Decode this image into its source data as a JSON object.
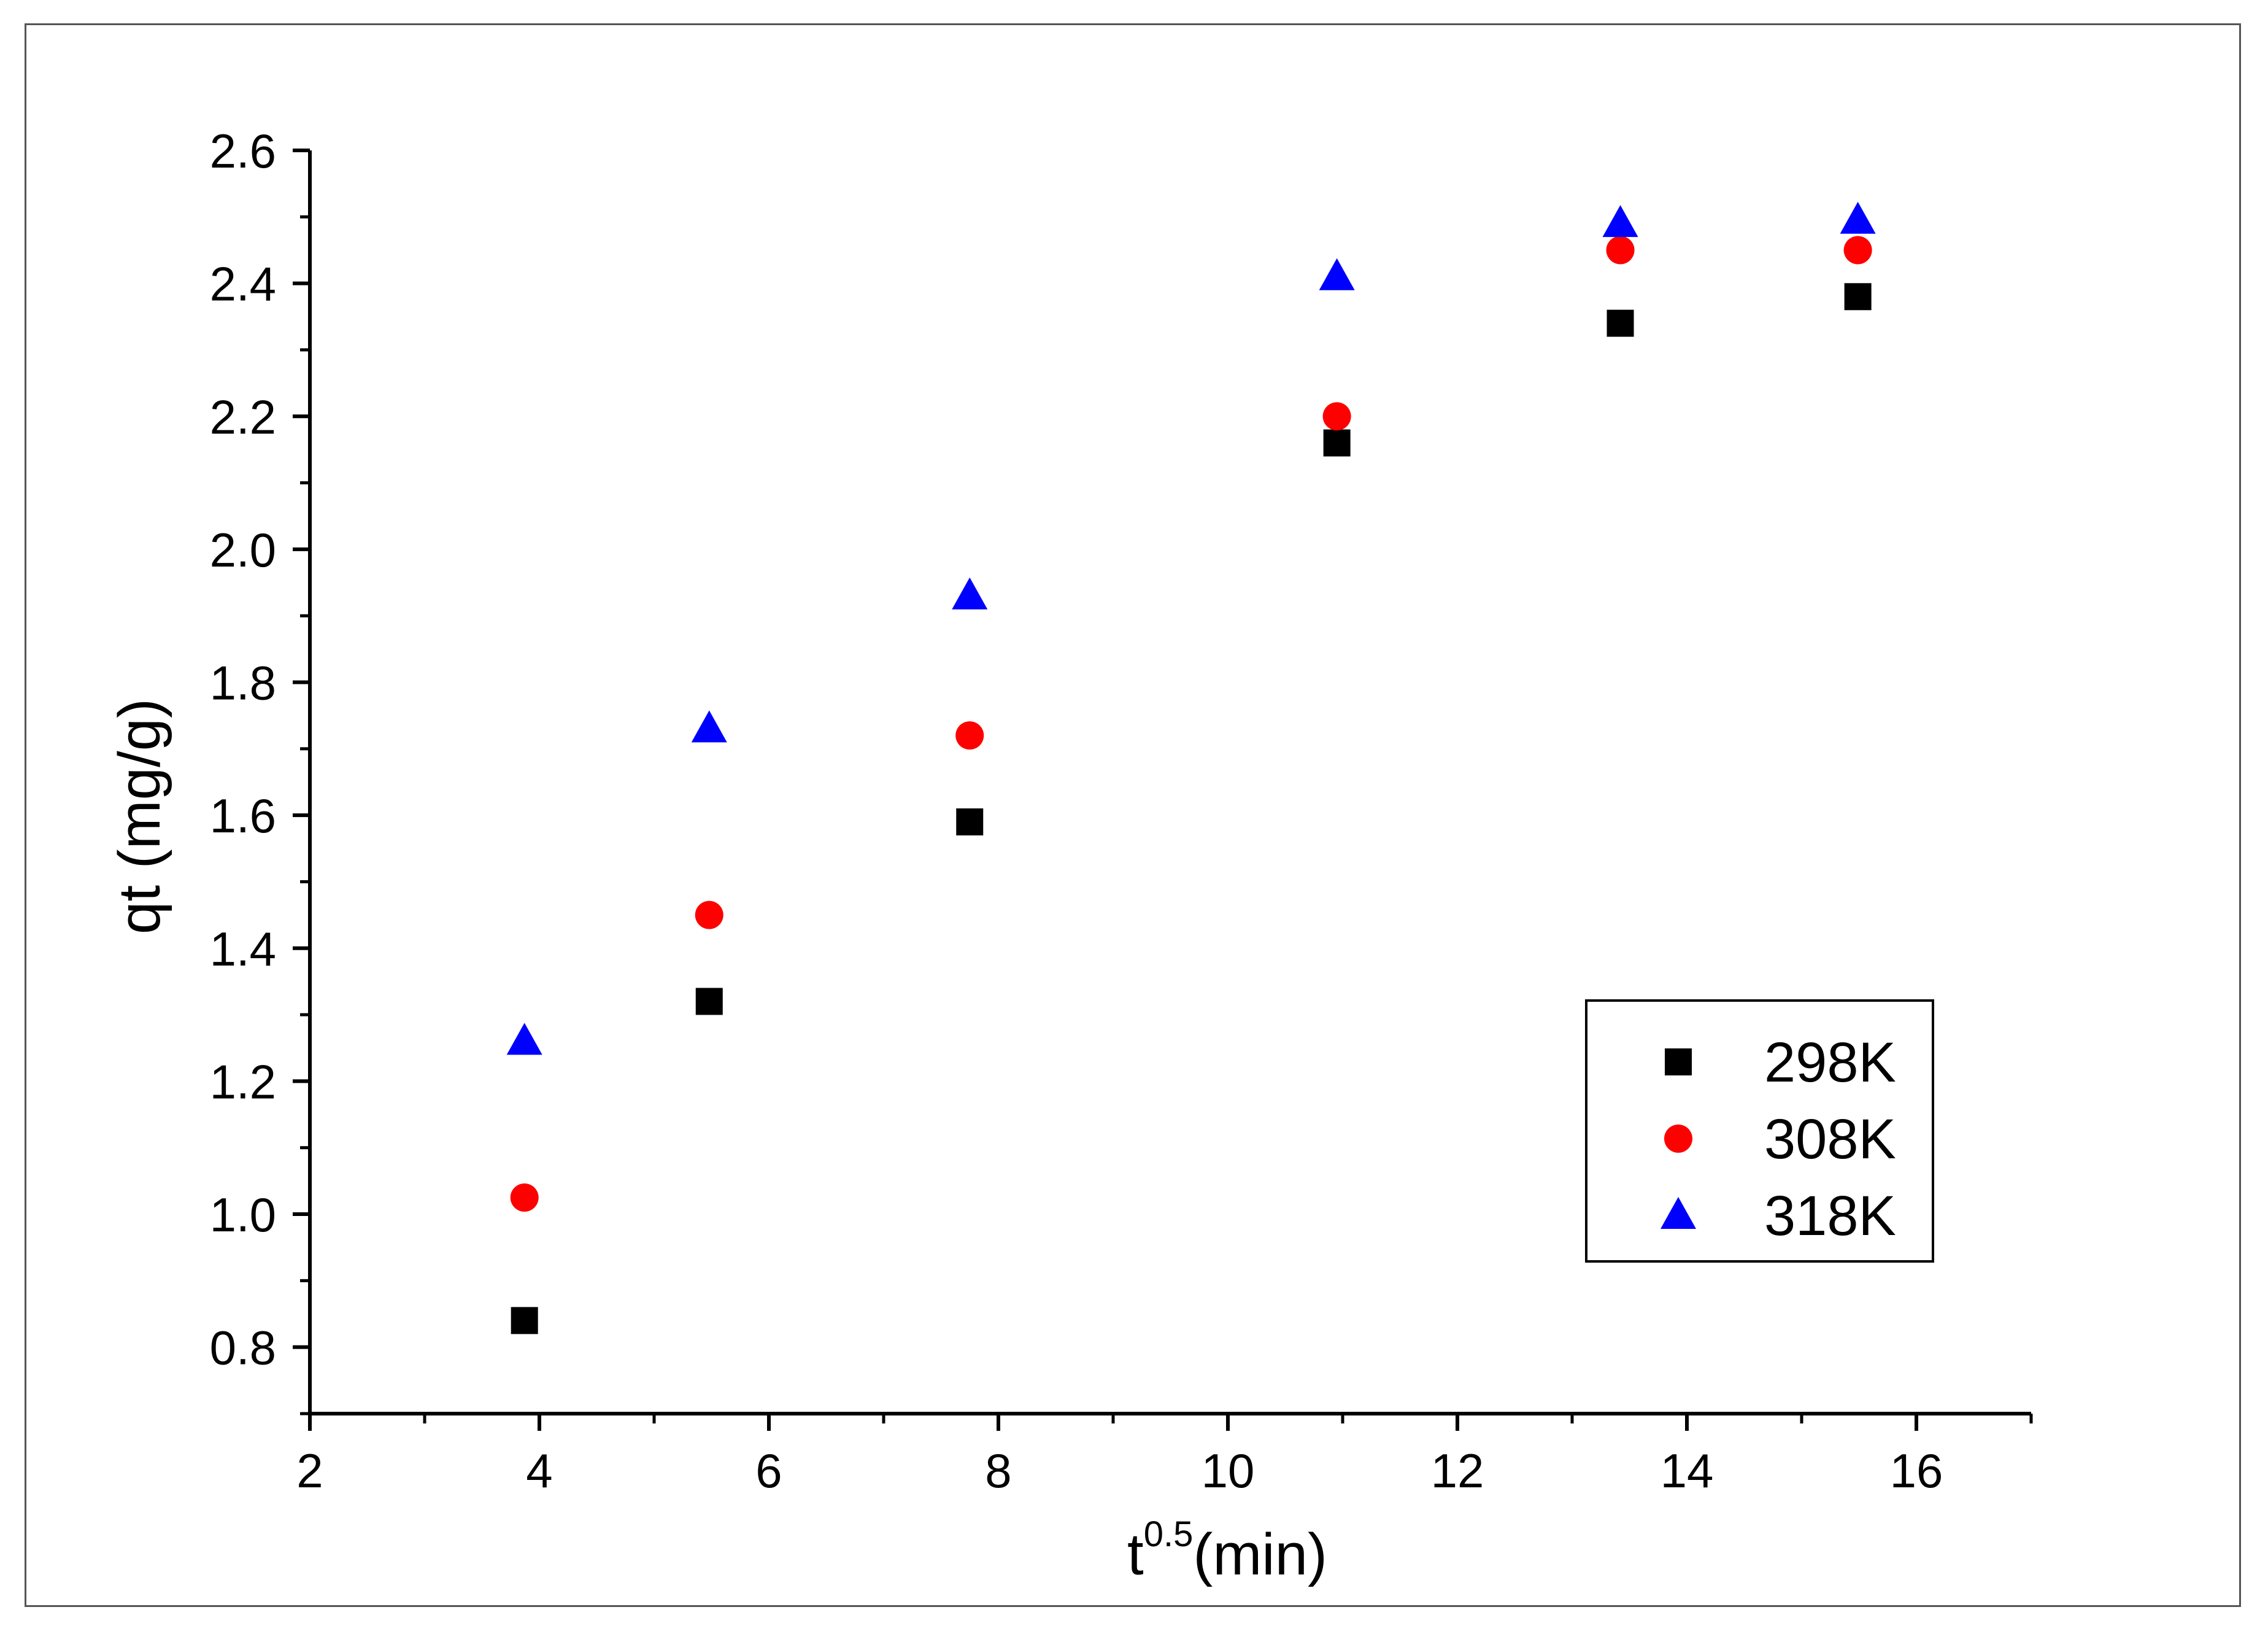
{
  "chart_data": {
    "type": "scatter",
    "x_axis": {
      "label_base": "t",
      "label_sup": "0.5",
      "label_unit": "(min)",
      "range": [
        2,
        17
      ],
      "ticks": [
        2,
        4,
        6,
        8,
        10,
        12,
        14,
        16
      ],
      "tick_labels": [
        "2",
        "4",
        "6",
        "8",
        "10",
        "12",
        "14",
        "16"
      ],
      "minor_ticks": [
        3,
        5,
        7,
        9,
        11,
        13,
        15,
        17
      ]
    },
    "y_axis": {
      "label": "qt (mg/g)",
      "range": [
        0.7,
        2.6
      ],
      "ticks": [
        0.8,
        1.0,
        1.2,
        1.4,
        1.6,
        1.8,
        2.0,
        2.2,
        2.4,
        2.6
      ],
      "tick_labels": [
        "0.8",
        "1.0",
        "1.2",
        "1.4",
        "1.6",
        "1.8",
        "2.0",
        "2.2",
        "2.4",
        "2.6"
      ],
      "minor_ticks": [
        0.7,
        0.9,
        1.1,
        1.3,
        1.5,
        1.7,
        1.9,
        2.1,
        2.3,
        2.5
      ]
    },
    "grid": false,
    "legend_position": "bottom-right",
    "series": [
      {
        "name": "298K",
        "marker": "square",
        "color": "#000000",
        "x": [
          3.87,
          5.48,
          7.75,
          10.95,
          13.42,
          15.49
        ],
        "y": [
          0.84,
          1.32,
          1.59,
          2.16,
          2.34,
          2.38
        ]
      },
      {
        "name": "308K",
        "marker": "circle",
        "color": "#ff0000",
        "x": [
          3.87,
          5.48,
          7.75,
          10.95,
          13.42,
          15.49
        ],
        "y": [
          1.025,
          1.45,
          1.72,
          2.2,
          2.45,
          2.45
        ]
      },
      {
        "name": "318K",
        "marker": "triangle",
        "color": "#0000ff",
        "x": [
          3.87,
          5.48,
          7.75,
          10.95,
          13.42,
          15.49
        ],
        "y": [
          1.26,
          1.73,
          1.93,
          2.41,
          2.49,
          2.495
        ]
      }
    ]
  }
}
